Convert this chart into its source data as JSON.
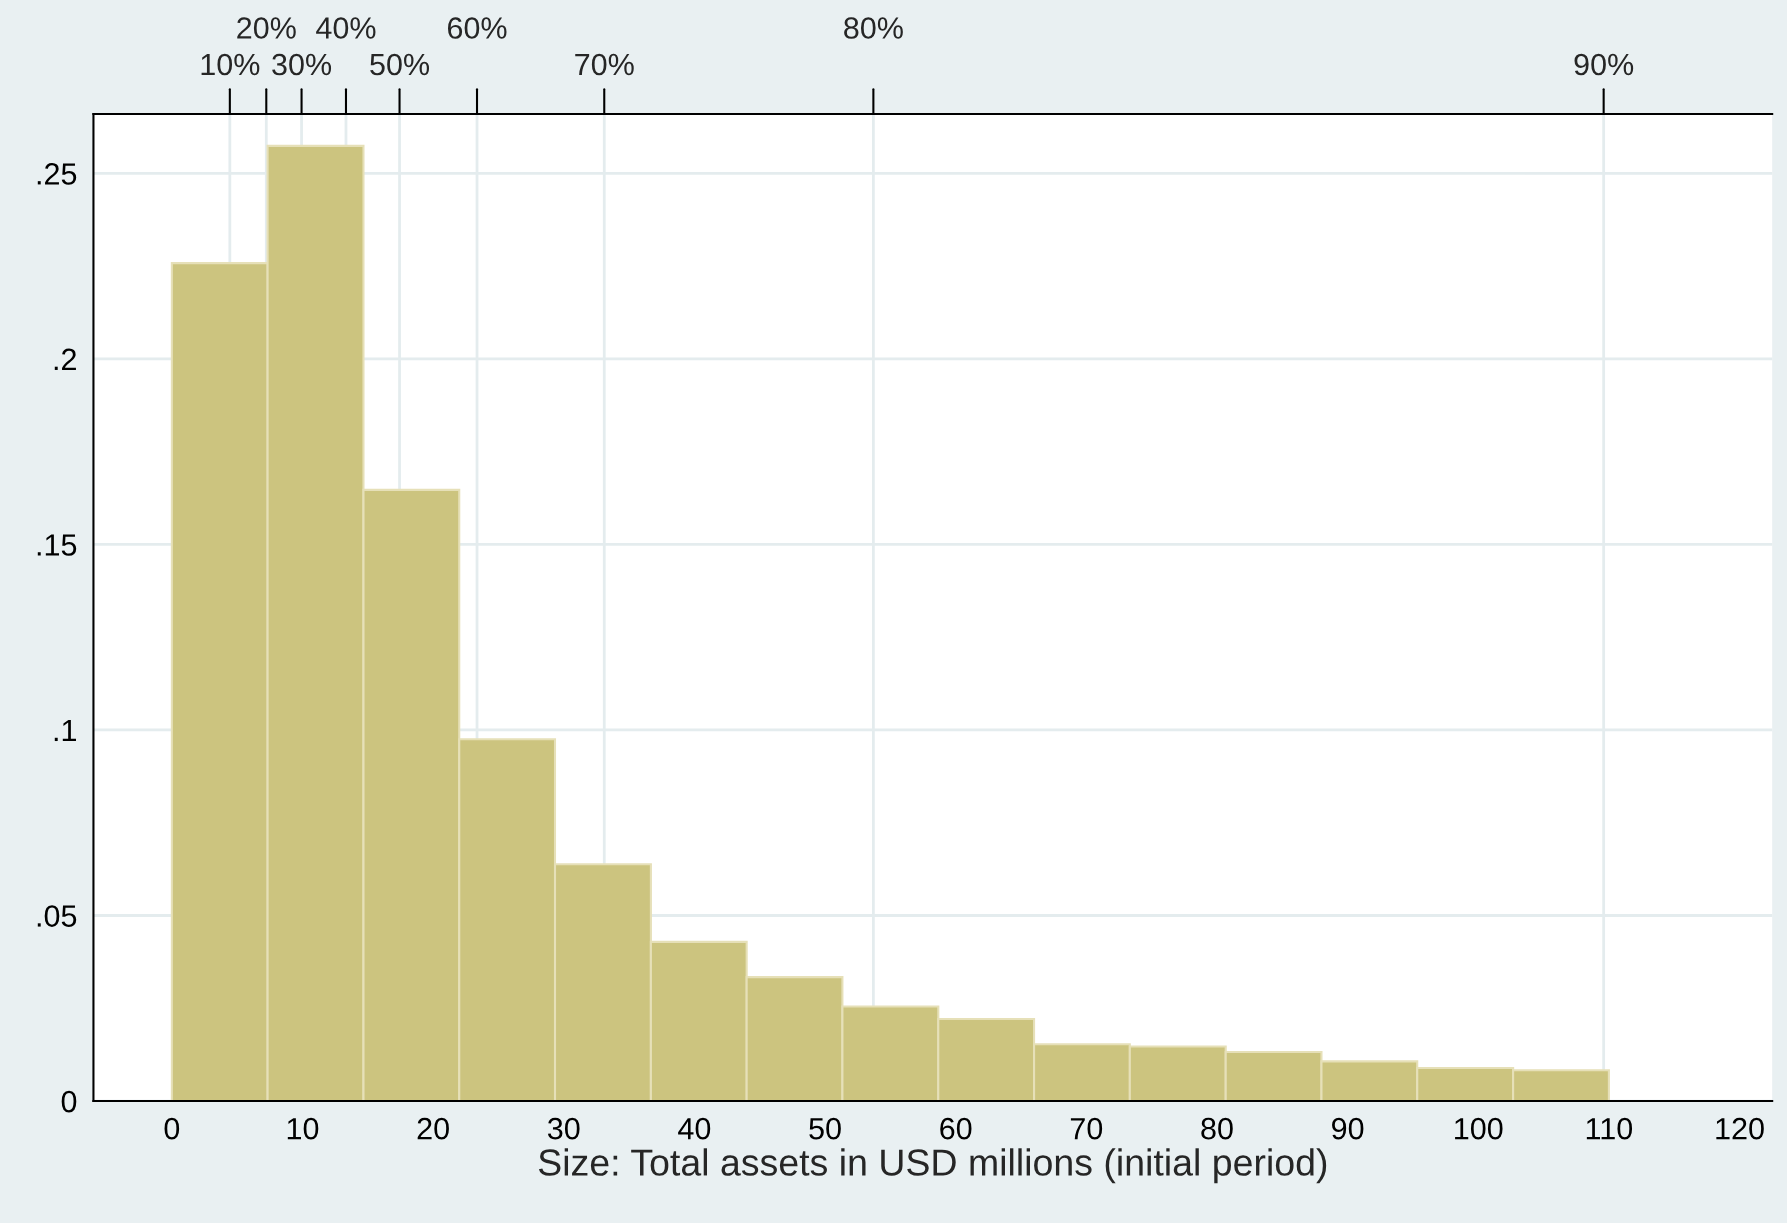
{
  "chart_data": {
    "type": "histogram",
    "xlabel": "Size: Total assets in USD millions (initial period)",
    "bins": [
      0,
      7.33,
      14.67,
      22,
      29.33,
      36.67,
      44,
      51.33,
      58.67,
      66,
      73.33,
      80.67,
      88,
      95.33,
      102.67,
      110
    ],
    "values": [
      0.2258,
      0.2574,
      0.1647,
      0.0975,
      0.0638,
      0.0429,
      0.0334,
      0.0255,
      0.0221,
      0.0153,
      0.0147,
      0.0132,
      0.0107,
      0.0089,
      0.0083
    ],
    "color": "#ccc47f",
    "xlim": [
      -6,
      122.5
    ],
    "xticks": [
      0,
      10,
      20,
      30,
      40,
      50,
      60,
      70,
      80,
      90,
      100,
      110,
      120
    ],
    "ylim": [
      0,
      0.266
    ],
    "yticks": [
      {
        "value": 0,
        "label": "0"
      },
      {
        "value": 0.05,
        "label": ".05"
      },
      {
        "value": 0.1,
        "label": ".1"
      },
      {
        "value": 0.15,
        "label": ".15"
      },
      {
        "value": 0.2,
        "label": ".2"
      },
      {
        "value": 0.25,
        "label": ".25"
      }
    ],
    "ref_lines": [
      {
        "axis": "x",
        "value": 4.44,
        "color": "#e4ecee"
      },
      {
        "axis": "x",
        "value": 7.23,
        "color": "#e4ecee"
      },
      {
        "axis": "x",
        "value": 9.93,
        "color": "#e4ecee"
      },
      {
        "axis": "x",
        "value": 13.33,
        "color": "#e4ecee"
      },
      {
        "axis": "x",
        "value": 17.43,
        "color": "#e4ecee"
      },
      {
        "axis": "x",
        "value": 23.36,
        "color": "#e4ecee"
      },
      {
        "axis": "x",
        "value": 33.1,
        "color": "#e4ecee"
      },
      {
        "axis": "x",
        "value": 53.7,
        "color": "#e4ecee"
      },
      {
        "axis": "x",
        "value": 109.6,
        "color": "#e4ecee"
      }
    ],
    "annotations": [
      "10%",
      "20%",
      "30%",
      "40%",
      "50%",
      "60%",
      "70%",
      "80%",
      "90%"
    ],
    "grid": "y"
  }
}
